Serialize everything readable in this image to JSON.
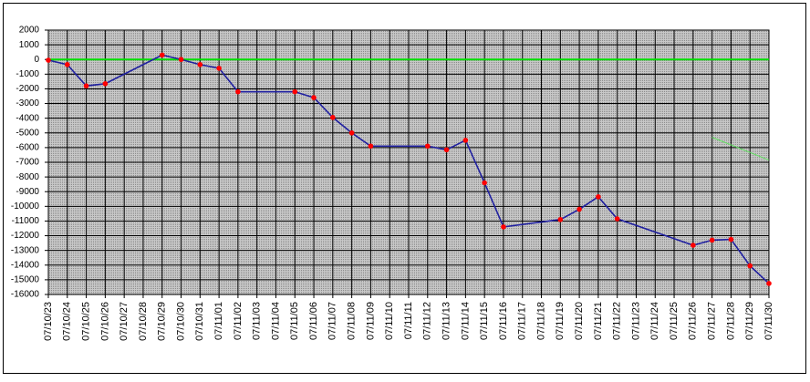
{
  "chart_data": {
    "type": "line",
    "categories": [
      "07/10/23",
      "07/10/24",
      "07/10/25",
      "07/10/26",
      "07/10/27",
      "07/10/28",
      "07/10/29",
      "07/10/30",
      "07/10/31",
      "07/11/01",
      "07/11/02",
      "07/11/03",
      "07/11/04",
      "07/11/05",
      "07/11/06",
      "07/11/07",
      "07/11/08",
      "07/11/09",
      "07/11/10",
      "07/11/11",
      "07/11/12",
      "07/11/13",
      "07/11/14",
      "07/11/15",
      "07/11/16",
      "07/11/17",
      "07/11/18",
      "07/11/19",
      "07/11/20",
      "07/11/21",
      "07/11/22",
      "07/11/23",
      "07/11/24",
      "07/11/25",
      "07/11/26",
      "07/11/27",
      "07/11/28",
      "07/11/29",
      "07/11/30"
    ],
    "series": [
      {
        "color": "#00e000",
        "x": [
          "07/10/23",
          "07/11/30"
        ],
        "values": [
          0,
          0
        ]
      },
      {
        "color": "#2020a0",
        "marker_color": "#ff0000",
        "x": [
          "07/10/23",
          "07/10/24",
          "07/10/25",
          "07/10/26",
          "07/10/29",
          "07/10/30",
          "07/10/31",
          "07/11/01",
          "07/11/02",
          "07/11/05",
          "07/11/06",
          "07/11/07",
          "07/11/08",
          "07/11/09",
          "07/11/12",
          "07/11/13",
          "07/11/14",
          "07/11/15",
          "07/11/16",
          "07/11/19",
          "07/11/20",
          "07/11/21",
          "07/11/22",
          "07/11/26",
          "07/11/27",
          "07/11/28",
          "07/11/29",
          "07/11/30"
        ],
        "values": [
          -50,
          -350,
          -1800,
          -1650,
          300,
          0,
          -350,
          -600,
          -2200,
          -2200,
          -2600,
          -3950,
          -5000,
          -5900,
          -5900,
          -6150,
          -5500,
          -8400,
          -11400,
          -10900,
          -10200,
          -9350,
          -10850,
          -12650,
          -12300,
          -12250,
          -14050,
          -15250
        ]
      },
      {
        "color": "#60e060",
        "x": [
          "07/11/27",
          "07/11/30"
        ],
        "values": [
          -5300,
          -6850
        ]
      }
    ],
    "ylim": [
      -16000,
      2000
    ],
    "yticks": [
      -16000,
      -15000,
      -14000,
      -13000,
      -12000,
      -11000,
      -10000,
      -9000,
      -8000,
      -7000,
      -6000,
      -5000,
      -4000,
      -3000,
      -2000,
      -1000,
      0,
      1000,
      2000
    ],
    "grid": true
  }
}
